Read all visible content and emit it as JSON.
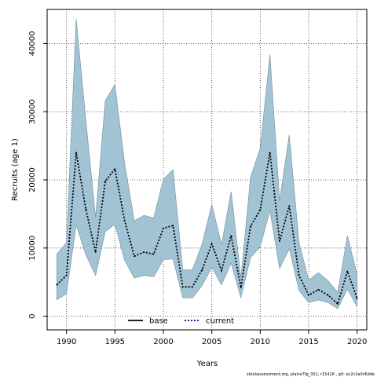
{
  "chart_data": {
    "type": "area",
    "title": "",
    "xlabel": "Years",
    "ylabel": "Recruits (age 1)",
    "xlim": [
      1988,
      2021
    ],
    "ylim": [
      -2000,
      45000
    ],
    "xticks": [
      1990,
      1995,
      2000,
      2005,
      2010,
      2015,
      2020
    ],
    "xtick_labels": [
      "1990",
      "1995",
      "2000",
      "2005",
      "2010",
      "2015",
      "2020"
    ],
    "yticks": [
      0,
      10000,
      20000,
      30000,
      40000
    ],
    "ytick_labels": [
      "0",
      "10000",
      "20000",
      "30000",
      "40000"
    ],
    "grid": true,
    "legend_position": "bottom-center",
    "x": [
      1989,
      1990,
      1991,
      1992,
      1993,
      1994,
      1995,
      1996,
      1997,
      1998,
      1999,
      2000,
      2001,
      2002,
      2003,
      2004,
      2005,
      2006,
      2007,
      2008,
      2009,
      2010,
      2011,
      2012,
      2013,
      2014,
      2015,
      2016,
      2017,
      2018,
      2019,
      2020
    ],
    "band": {
      "color": "#a2c3d4",
      "lower": [
        2400,
        3300,
        13400,
        9000,
        6000,
        12400,
        13500,
        8200,
        5600,
        6000,
        5800,
        8300,
        8400,
        2700,
        2700,
        4500,
        7200,
        4600,
        7800,
        2700,
        8600,
        10200,
        15500,
        7000,
        9900,
        3800,
        2000,
        2400,
        2000,
        1100,
        4000,
        1400
      ],
      "upper": [
        9100,
        10800,
        43600,
        28800,
        14500,
        31600,
        34000,
        22400,
        14000,
        14800,
        14400,
        20100,
        21500,
        6800,
        6800,
        10600,
        16400,
        10500,
        18300,
        5600,
        20400,
        24600,
        38400,
        17000,
        26600,
        10800,
        5300,
        6400,
        5200,
        3500,
        11800,
        6100
      ]
    },
    "series": [
      {
        "name": "current",
        "style": "dotted",
        "color": "#000000",
        "values": [
          4600,
          6000,
          24000,
          15700,
          9400,
          19800,
          21600,
          14000,
          8800,
          9400,
          9100,
          12900,
          13300,
          4300,
          4300,
          6800,
          10600,
          6700,
          11800,
          4200,
          13200,
          15600,
          24000,
          11000,
          16200,
          6000,
          3100,
          3900,
          3100,
          1800,
          6600,
          2600
        ]
      }
    ],
    "legend": [
      {
        "label": "base",
        "style": "solid",
        "color": "#000000"
      },
      {
        "label": "current",
        "style": "dotted",
        "color": "#000080"
      }
    ]
  },
  "footer_text": "stockassessment.org, plaice7fg_001, r15416 , git: ec2c2a0c6dde"
}
